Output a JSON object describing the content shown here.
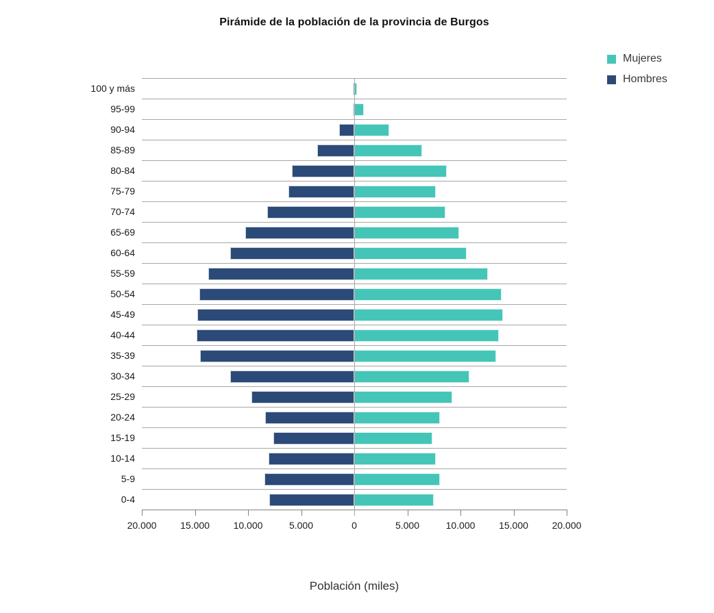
{
  "chart": {
    "title": "Pirámide de la población de la provincia de Burgos",
    "xlabel": "Población (miles)",
    "legend": [
      {
        "label": "Mujeres",
        "color": "#45c5b7"
      },
      {
        "label": "Hombres",
        "color": "#2c4a78"
      }
    ]
  },
  "chart_data": {
    "type": "bar",
    "orientation": "horizontal",
    "subtype": "population-pyramid",
    "title": "Pirámide de la población de la provincia de Burgos",
    "xlabel": "Población (miles)",
    "ylabel": "",
    "categories": [
      "100 y más",
      "95-99",
      "90-94",
      "85-89",
      "80-84",
      "75-79",
      "70-74",
      "65-69",
      "60-64",
      "55-59",
      "50-54",
      "45-49",
      "40-44",
      "35-39",
      "30-34",
      "25-29",
      "20-24",
      "15-19",
      "10-14",
      "5-9",
      "0-4"
    ],
    "series": [
      {
        "name": "Hombres",
        "side": "left",
        "color": "#2c4a78",
        "values": [
          50,
          150,
          1400,
          3500,
          5900,
          6200,
          8200,
          10250,
          11650,
          13750,
          14600,
          14800,
          14850,
          14500,
          11650,
          9700,
          8400,
          7600,
          8050,
          8450,
          8000
        ]
      },
      {
        "name": "Mujeres",
        "side": "right",
        "color": "#45c5b7",
        "values": [
          280,
          900,
          3300,
          6400,
          8700,
          7700,
          8550,
          9900,
          10550,
          12600,
          13900,
          14000,
          13600,
          13350,
          10850,
          9200,
          8050,
          7350,
          7650,
          8050,
          7500
        ]
      }
    ],
    "x_tick_labels": [
      "20.000",
      "15.000",
      "10.000",
      "5.000",
      "0",
      "5.000",
      "10.000",
      "15.000",
      "20.000"
    ],
    "x_tick_values": [
      -20000,
      -15000,
      -10000,
      -5000,
      0,
      5000,
      10000,
      15000,
      20000
    ],
    "xlim": [
      -20000,
      20000
    ],
    "axis_max_per_side": 20000,
    "grid": "horizontal-band-lines",
    "gridline_color": "#a6a6a6",
    "axis_color": "#808080",
    "legend_position": "top-right"
  }
}
